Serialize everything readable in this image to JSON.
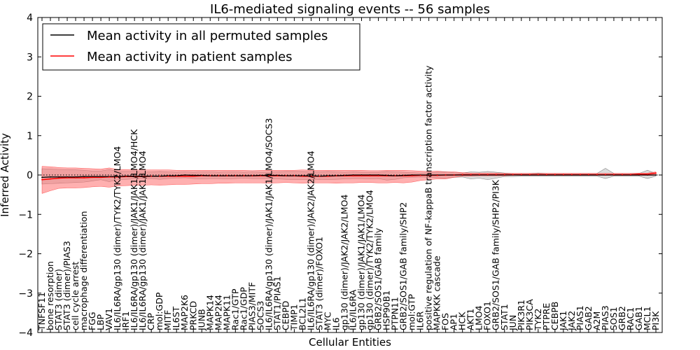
{
  "chart_data": {
    "type": "line",
    "title": "IL6-mediated signaling events -- 56 samples",
    "xlabel": "Cellular Entities",
    "ylabel": "Inferred Activity",
    "ylim": [
      -4,
      4
    ],
    "yticks": [
      -4,
      -3,
      -2,
      -1,
      0,
      1,
      2,
      3,
      4
    ],
    "grid": false,
    "legend_position": "top-left",
    "colors": {
      "permuted_line": "#000000",
      "permuted_band": "#b0b0b0",
      "patient_line": "#ff0000",
      "patient_band": "#ff6f6f"
    },
    "categories": [
      "TNFSF11",
      "bone resorption",
      "STAT3 (dimer)",
      "STAT3 (dimer)/PIAS3",
      "cell cycle arrest",
      "macrophage differentiation",
      "FGG",
      "LBP",
      "VAV1",
      "IL6/IL6RA/gp130 (dimer)/TYK2/TYK2/LMO4",
      "IRF1",
      "IL6/IL6RA/gp130 (dimer)/JAK1/JAK1/LMO4/HCK",
      "IL6/IL6RA/gp130 (dimer)/JAK1/JAK1/LMO4",
      "CRP",
      "mol:GDP",
      "MITF",
      "IL6ST",
      "MAP2K6",
      "PRKCD",
      "JUNB",
      "MAPK14",
      "MAP2K4",
      "MAPK11",
      "Rac1/GTP",
      "Rac1/GDP",
      "PIAS3/MITF",
      "SOCS3",
      "IL6/IL6RA/gp130 (dimer)/JAK1/JAK1/LMO4/SOCS3",
      "STAT1/PIAS1",
      "CEBPD",
      "TIMP1",
      "BCL2L1",
      "IL6/IL6RA/gp130 (dimer)/JAK2/JAK2/LMO4",
      "STAT3 (dimer)/FOXO1",
      "MYC",
      "IL6",
      "gp130 (dimer)/JAK2/JAK2/LMO4",
      "IL6/IL6RA",
      "gp130 (dimer)/JAK1/JAK1/LMO4",
      "gp130 (dimer)/TYK2/TYK2/LMO4",
      "GRB2/SOS1/GAB family",
      "HSP90B1",
      "PTPN11",
      "GRB2/SOS1/GAB family/SHP2",
      "mol:GTP",
      "IL6R",
      "positive regulation of NF-kappaB transcription factor activity",
      "MAPKKK cascade",
      "FOS",
      "AP1",
      "HCK",
      "AKT1",
      "LMO4",
      "FOXO1",
      "GRB2/SOS1/GAB family/SHP2/PI3K",
      "STAT1",
      "JUN",
      "PIK3R1",
      "PIK3CA",
      "TYK2",
      "PTPRE",
      "CEBPB",
      "JAK1",
      "JAK2",
      "PIAS1",
      "GAB2",
      "A2M",
      "PIAS3",
      "SOS1",
      "GRB2",
      "RAC1",
      "GAB1",
      "MCL1",
      "PI3K"
    ],
    "series": [
      {
        "name": "Mean activity in all permuted samples",
        "values": [
          -0.06,
          -0.05,
          -0.05,
          -0.05,
          -0.05,
          -0.04,
          -0.04,
          -0.04,
          -0.04,
          -0.04,
          -0.03,
          -0.03,
          -0.03,
          -0.03,
          -0.03,
          -0.02,
          -0.02,
          0.0,
          -0.01,
          -0.01,
          -0.02,
          -0.02,
          -0.02,
          -0.02,
          -0.02,
          -0.02,
          -0.01,
          -0.01,
          -0.01,
          -0.02,
          -0.02,
          -0.02,
          -0.02,
          -0.03,
          -0.02,
          -0.02,
          -0.01,
          0.0,
          0.0,
          0.0,
          0.0,
          -0.01,
          -0.02,
          -0.01,
          0.0,
          0.0,
          0.0,
          0.0,
          0.0,
          0.0,
          0.0,
          0.0,
          0.0,
          0.0,
          0.0,
          0.0,
          0.0,
          0.0,
          0.0,
          0.0,
          0.0,
          0.0,
          0.0,
          0.0,
          0.0,
          0.0,
          0.0,
          0.0,
          0.0,
          0.0,
          0.0,
          0.0,
          0.0,
          0.0
        ],
        "band_lower": [
          -0.23,
          -0.22,
          -0.21,
          -0.2,
          -0.19,
          -0.18,
          -0.15,
          -0.12,
          -0.17,
          -0.12,
          -0.11,
          -0.1,
          -0.1,
          -0.09,
          -0.11,
          -0.09,
          -0.08,
          -0.07,
          -0.09,
          -0.1,
          -0.09,
          -0.09,
          -0.1,
          -0.09,
          -0.08,
          -0.09,
          -0.09,
          -0.09,
          -0.1,
          -0.11,
          -0.12,
          -0.12,
          -0.12,
          -0.11,
          -0.12,
          -0.11,
          -0.1,
          -0.09,
          -0.09,
          -0.1,
          -0.09,
          -0.13,
          -0.11,
          -0.07,
          -0.06,
          -0.05,
          -0.06,
          -0.07,
          -0.08,
          -0.06,
          -0.05,
          -0.1,
          -0.08,
          -0.12,
          -0.08,
          -0.04,
          -0.04,
          -0.03,
          -0.03,
          -0.03,
          -0.03,
          -0.03,
          -0.03,
          -0.03,
          -0.03,
          -0.03,
          -0.03,
          -0.09,
          -0.03,
          -0.03,
          -0.03,
          -0.03,
          -0.09,
          -0.03
        ],
        "band_upper": [
          0.16,
          0.15,
          0.14,
          0.14,
          0.13,
          0.12,
          0.1,
          0.1,
          0.14,
          0.09,
          0.09,
          0.09,
          0.08,
          0.08,
          0.09,
          0.08,
          0.07,
          0.08,
          0.07,
          0.08,
          0.08,
          0.07,
          0.08,
          0.08,
          0.07,
          0.08,
          0.07,
          0.07,
          0.08,
          0.09,
          0.09,
          0.09,
          0.08,
          0.08,
          0.09,
          0.08,
          0.07,
          0.08,
          0.07,
          0.07,
          0.07,
          0.09,
          0.08,
          0.07,
          0.06,
          0.05,
          0.06,
          0.07,
          0.08,
          0.06,
          0.05,
          0.08,
          0.07,
          0.09,
          0.07,
          0.05,
          0.04,
          0.04,
          0.04,
          0.05,
          0.04,
          0.04,
          0.04,
          0.04,
          0.04,
          0.04,
          0.04,
          0.17,
          0.04,
          0.04,
          0.04,
          0.04,
          0.12,
          0.04
        ]
      },
      {
        "name": "Mean activity in patient samples",
        "values": [
          -0.12,
          -0.1,
          -0.08,
          -0.07,
          -0.07,
          -0.07,
          -0.06,
          -0.06,
          -0.05,
          -0.05,
          -0.04,
          -0.04,
          -0.04,
          -0.03,
          -0.03,
          -0.03,
          -0.03,
          -0.03,
          -0.03,
          -0.02,
          -0.02,
          -0.02,
          -0.02,
          -0.02,
          -0.02,
          -0.02,
          -0.02,
          -0.02,
          -0.02,
          -0.02,
          -0.02,
          -0.03,
          -0.03,
          -0.03,
          -0.03,
          -0.02,
          -0.02,
          -0.02,
          -0.02,
          -0.02,
          -0.02,
          -0.02,
          -0.02,
          -0.02,
          -0.02,
          -0.01,
          -0.01,
          -0.01,
          0.0,
          0.0,
          0.01,
          0.01,
          0.01,
          0.01,
          0.01,
          0.01,
          0.01,
          0.01,
          0.01,
          0.01,
          0.01,
          0.01,
          0.01,
          0.01,
          0.01,
          0.01,
          0.01,
          0.01,
          0.01,
          0.01,
          0.01,
          0.02,
          0.02,
          0.05
        ],
        "band_lower": [
          -0.47,
          -0.4,
          -0.34,
          -0.33,
          -0.33,
          -0.32,
          -0.3,
          -0.29,
          -0.31,
          -0.28,
          -0.27,
          -0.26,
          -0.26,
          -0.25,
          -0.26,
          -0.25,
          -0.24,
          -0.24,
          -0.23,
          -0.22,
          -0.22,
          -0.21,
          -0.21,
          -0.2,
          -0.2,
          -0.2,
          -0.2,
          -0.21,
          -0.2,
          -0.19,
          -0.2,
          -0.21,
          -0.2,
          -0.2,
          -0.2,
          -0.21,
          -0.2,
          -0.2,
          -0.19,
          -0.19,
          -0.2,
          -0.2,
          -0.19,
          -0.2,
          -0.18,
          -0.14,
          -0.12,
          -0.1,
          -0.1,
          -0.06,
          -0.03,
          -0.03,
          -0.02,
          -0.02,
          -0.02,
          -0.02,
          -0.01,
          -0.01,
          -0.01,
          -0.01,
          -0.01,
          -0.01,
          -0.01,
          -0.01,
          -0.01,
          -0.01,
          -0.01,
          -0.01,
          -0.01,
          -0.01,
          -0.01,
          -0.01,
          -0.01,
          -0.01
        ],
        "band_upper": [
          0.22,
          0.21,
          0.19,
          0.18,
          0.18,
          0.17,
          0.16,
          0.15,
          0.18,
          0.14,
          0.14,
          0.13,
          0.13,
          0.13,
          0.13,
          0.13,
          0.12,
          0.12,
          0.12,
          0.12,
          0.12,
          0.12,
          0.12,
          0.12,
          0.12,
          0.11,
          0.12,
          0.12,
          0.12,
          0.12,
          0.12,
          0.13,
          0.12,
          0.12,
          0.12,
          0.12,
          0.12,
          0.12,
          0.12,
          0.11,
          0.11,
          0.12,
          0.12,
          0.12,
          0.11,
          0.1,
          0.09,
          0.1,
          0.08,
          0.08,
          0.06,
          0.05,
          0.05,
          0.05,
          0.05,
          0.04,
          0.04,
          0.04,
          0.04,
          0.04,
          0.04,
          0.04,
          0.04,
          0.04,
          0.04,
          0.04,
          0.04,
          0.04,
          0.04,
          0.04,
          0.04,
          0.05,
          0.05,
          0.08
        ]
      }
    ]
  }
}
